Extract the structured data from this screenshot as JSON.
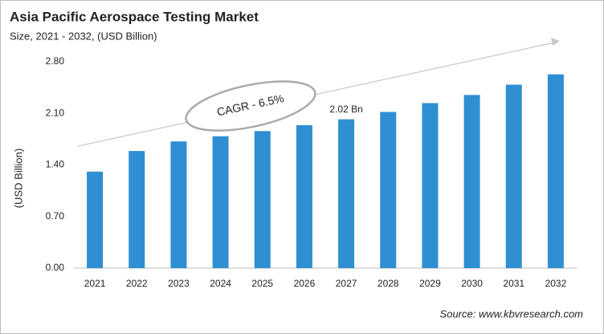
{
  "chart_data": {
    "type": "bar",
    "title": "Asia Pacific Aerospace Testing Market",
    "subtitle": "Size, 2021 - 2032, (USD Billion)",
    "y_label": "(USD Billion)",
    "annotation": "CAGR - 6.5%",
    "source": "Source: www.kbvresearch.com",
    "categories": [
      "2021",
      "2022",
      "2023",
      "2024",
      "2025",
      "2026",
      "2027",
      "2028",
      "2029",
      "2030",
      "2031",
      "2032"
    ],
    "values": [
      1.31,
      1.59,
      1.72,
      1.79,
      1.86,
      1.94,
      2.02,
      2.12,
      2.24,
      2.35,
      2.49,
      2.63
    ],
    "value_labels": [
      null,
      null,
      null,
      null,
      null,
      null,
      "2.02 Bn",
      null,
      null,
      null,
      null,
      null
    ],
    "color": "#2f8fd2",
    "ylim": [
      0,
      2.8
    ],
    "yticks": [
      {
        "value": 0,
        "label": "0.00"
      },
      {
        "value": 0.7,
        "label": "0.70"
      },
      {
        "value": 1.4,
        "label": "1.40"
      },
      {
        "value": 2.1,
        "label": "2.10"
      },
      {
        "value": 2.8,
        "label": "2.80"
      }
    ],
    "grid": false
  }
}
